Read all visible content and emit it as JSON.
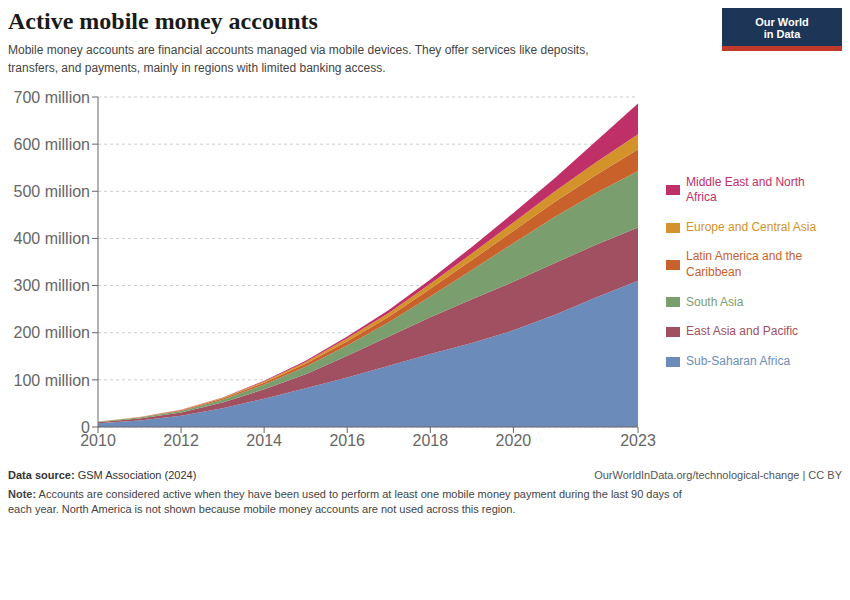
{
  "chart_data": {
    "type": "area",
    "stacked": true,
    "title": "Active mobile money accounts",
    "subtitle": "Mobile money accounts are financial accounts managed via mobile devices. They offer services like deposits,\ntransfers, and payments, mainly in regions with limited banking access.",
    "x": [
      2010,
      2011,
      2012,
      2013,
      2014,
      2015,
      2016,
      2017,
      2018,
      2019,
      2020,
      2021,
      2022,
      2023
    ],
    "series": [
      {
        "name": "Sub-Saharan Africa",
        "color": "#6b8cba",
        "values": [
          8,
          14,
          24,
          40,
          60,
          82,
          105,
          130,
          155,
          178,
          205,
          238,
          275,
          310
        ]
      },
      {
        "name": "East Asia and Pacific",
        "color": "#a05060",
        "values": [
          2,
          4,
          7,
          12,
          20,
          30,
          46,
          62,
          78,
          93,
          103,
          110,
          112,
          113
        ]
      },
      {
        "name": "South Asia",
        "color": "#7a9e6e",
        "values": [
          1,
          2,
          3,
          6,
          10,
          16,
          22,
          30,
          44,
          62,
          82,
          98,
          110,
          120
        ]
      },
      {
        "name": "Latin America and the Caribbean",
        "color": "#c8622a",
        "values": [
          0.4,
          0.8,
          1.5,
          2.5,
          4,
          6,
          9,
          12,
          16,
          21,
          26,
          32,
          38,
          46
        ]
      },
      {
        "name": "Europe and Central Asia",
        "color": "#d4922a",
        "values": [
          0.2,
          0.4,
          0.8,
          1.5,
          2.5,
          4,
          6,
          8,
          11,
          14,
          18,
          22,
          27,
          32
        ]
      },
      {
        "name": "Middle East and North Africa",
        "color": "#bf3069",
        "values": [
          0.1,
          0.2,
          0.4,
          0.8,
          1.5,
          2.5,
          4,
          6,
          9,
          14,
          20,
          28,
          45,
          65
        ]
      }
    ],
    "xlim": [
      2010,
      2023
    ],
    "xticks": [
      2010,
      2012,
      2014,
      2016,
      2018,
      2020,
      2023
    ],
    "ylim": [
      0,
      700
    ],
    "yticks": [
      0,
      {
        "value": 100,
        "label": "100 million"
      },
      {
        "value": 200,
        "label": "200 million"
      },
      {
        "value": 300,
        "label": "300 million"
      },
      {
        "value": 400,
        "label": "400 million"
      },
      {
        "value": 500,
        "label": "500 million"
      },
      {
        "value": 600,
        "label": "600 million"
      },
      {
        "value": 700,
        "label": "700 million"
      }
    ],
    "grid": "y",
    "legend": "right",
    "annotations": [
      "Our World\nin Data",
      "Data source: GSM Association (2024)",
      "OurWorldInData.org/technological-change | CC BY",
      "Note: Accounts are considered active when they have been used to perform at least one mobile money payment during the last 90 days of\neach year. North America is not shown because mobile money accounts are not used across this region."
    ]
  }
}
